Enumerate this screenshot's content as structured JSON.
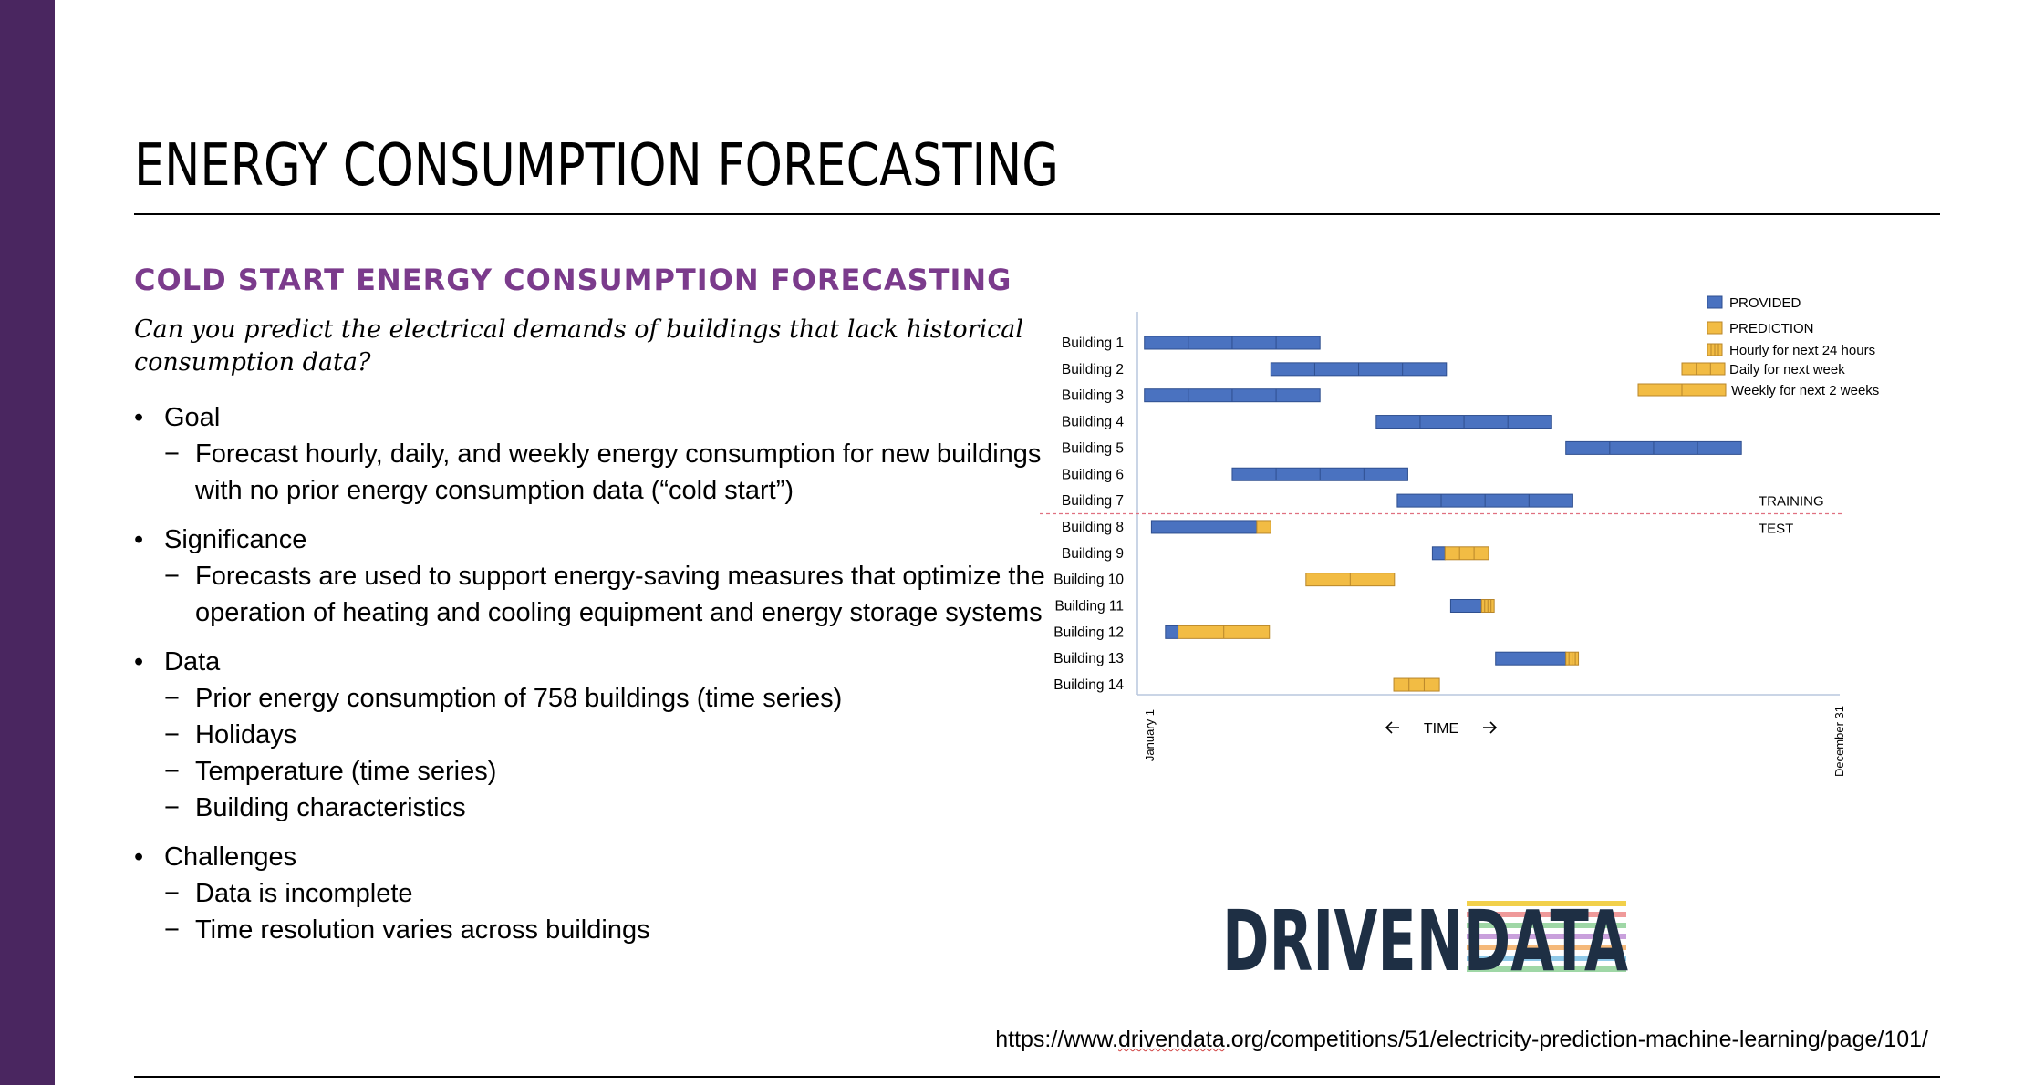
{
  "title": "ENERGY CONSUMPTION FORECASTING",
  "subtitle": "COLD START ENERGY CONSUMPTION FORECASTING",
  "question": "Can you predict the electrical demands of buildings that lack historical consumption data?",
  "sections": [
    {
      "label": "Goal",
      "items": [
        "Forecast hourly, daily, and weekly energy consumption for new buildings with no prior energy consumption data (“cold start”)"
      ]
    },
    {
      "label": "Significance",
      "items": [
        "Forecasts are used to support energy-saving measures that optimize the operation of heating and cooling equipment and energy storage systems"
      ]
    },
    {
      "label": "Data",
      "items": [
        "Prior energy consumption of 758 buildings (time series)",
        "Holidays",
        "Temperature (time series)",
        "Building characteristics"
      ]
    },
    {
      "label": "Challenges",
      "items": [
        "Data is incomplete",
        "Time resolution varies across buildings"
      ]
    }
  ],
  "chart_data": {
    "type": "gantt",
    "legend": {
      "provided": "PROVIDED",
      "prediction": "PREDICTION",
      "hourly": "Hourly for next 24 hours",
      "daily": "Daily for next week",
      "weekly": "Weekly for next 2 weeks"
    },
    "x_start_label": "January 1",
    "x_end_label": "December 31",
    "x_axis_label": "TIME",
    "training_label": "TRAINING",
    "test_label": "TEST",
    "colors": {
      "provided": "#4a72c0",
      "provided_edge": "#2f4f8f",
      "prediction": "#f2bc44",
      "prediction_edge": "#b8862a",
      "divider": "#e07080"
    },
    "rows": [
      {
        "label": "Building 1",
        "group": "training",
        "segments": [
          {
            "kind": "provided",
            "start": 0.01,
            "end": 0.26,
            "parts": 4
          }
        ]
      },
      {
        "label": "Building 2",
        "group": "training",
        "segments": [
          {
            "kind": "provided",
            "start": 0.19,
            "end": 0.44,
            "parts": 4
          }
        ]
      },
      {
        "label": "Building 3",
        "group": "training",
        "segments": [
          {
            "kind": "provided",
            "start": 0.01,
            "end": 0.26,
            "parts": 4
          }
        ]
      },
      {
        "label": "Building 4",
        "group": "training",
        "segments": [
          {
            "kind": "provided",
            "start": 0.34,
            "end": 0.59,
            "parts": 4
          }
        ]
      },
      {
        "label": "Building 5",
        "group": "training",
        "segments": [
          {
            "kind": "provided",
            "start": 0.61,
            "end": 0.86,
            "parts": 4
          }
        ]
      },
      {
        "label": "Building 6",
        "group": "training",
        "segments": [
          {
            "kind": "provided",
            "start": 0.135,
            "end": 0.385,
            "parts": 4
          }
        ]
      },
      {
        "label": "Building 7",
        "group": "training",
        "segments": [
          {
            "kind": "provided",
            "start": 0.37,
            "end": 0.62,
            "parts": 4
          }
        ]
      },
      {
        "label": "Building 8",
        "group": "test",
        "segments": [
          {
            "kind": "provided",
            "start": 0.02,
            "end": 0.17,
            "parts": 1
          },
          {
            "kind": "daily",
            "start": 0.17,
            "end": 0.19,
            "parts": 1
          }
        ]
      },
      {
        "label": "Building 9",
        "group": "test",
        "segments": [
          {
            "kind": "provided",
            "start": 0.42,
            "end": 0.438,
            "parts": 1
          },
          {
            "kind": "daily",
            "start": 0.438,
            "end": 0.5,
            "parts": 3
          }
        ]
      },
      {
        "label": "Building 10",
        "group": "test",
        "segments": [
          {
            "kind": "weekly",
            "start": 0.24,
            "end": 0.366,
            "parts": 2
          }
        ]
      },
      {
        "label": "Building 11",
        "group": "test",
        "segments": [
          {
            "kind": "provided",
            "start": 0.446,
            "end": 0.49,
            "parts": 1
          },
          {
            "kind": "hourly",
            "start": 0.49,
            "end": 0.508,
            "parts": 4
          }
        ]
      },
      {
        "label": "Building 12",
        "group": "test",
        "segments": [
          {
            "kind": "provided",
            "start": 0.04,
            "end": 0.058,
            "parts": 1
          },
          {
            "kind": "weekly",
            "start": 0.058,
            "end": 0.188,
            "parts": 2
          }
        ]
      },
      {
        "label": "Building 13",
        "group": "test",
        "segments": [
          {
            "kind": "provided",
            "start": 0.51,
            "end": 0.61,
            "parts": 1
          },
          {
            "kind": "hourly",
            "start": 0.61,
            "end": 0.628,
            "parts": 4
          }
        ]
      },
      {
        "label": "Building 14",
        "group": "test",
        "segments": [
          {
            "kind": "daily",
            "start": 0.365,
            "end": 0.43,
            "parts": 3
          }
        ]
      }
    ]
  },
  "logo_text": "DRIVENDATA",
  "source": {
    "prefix": "https://www.",
    "domain": "drivendata",
    "suffix": ".org/competitions/51/electricity-prediction-machine-learning/page/101/"
  }
}
